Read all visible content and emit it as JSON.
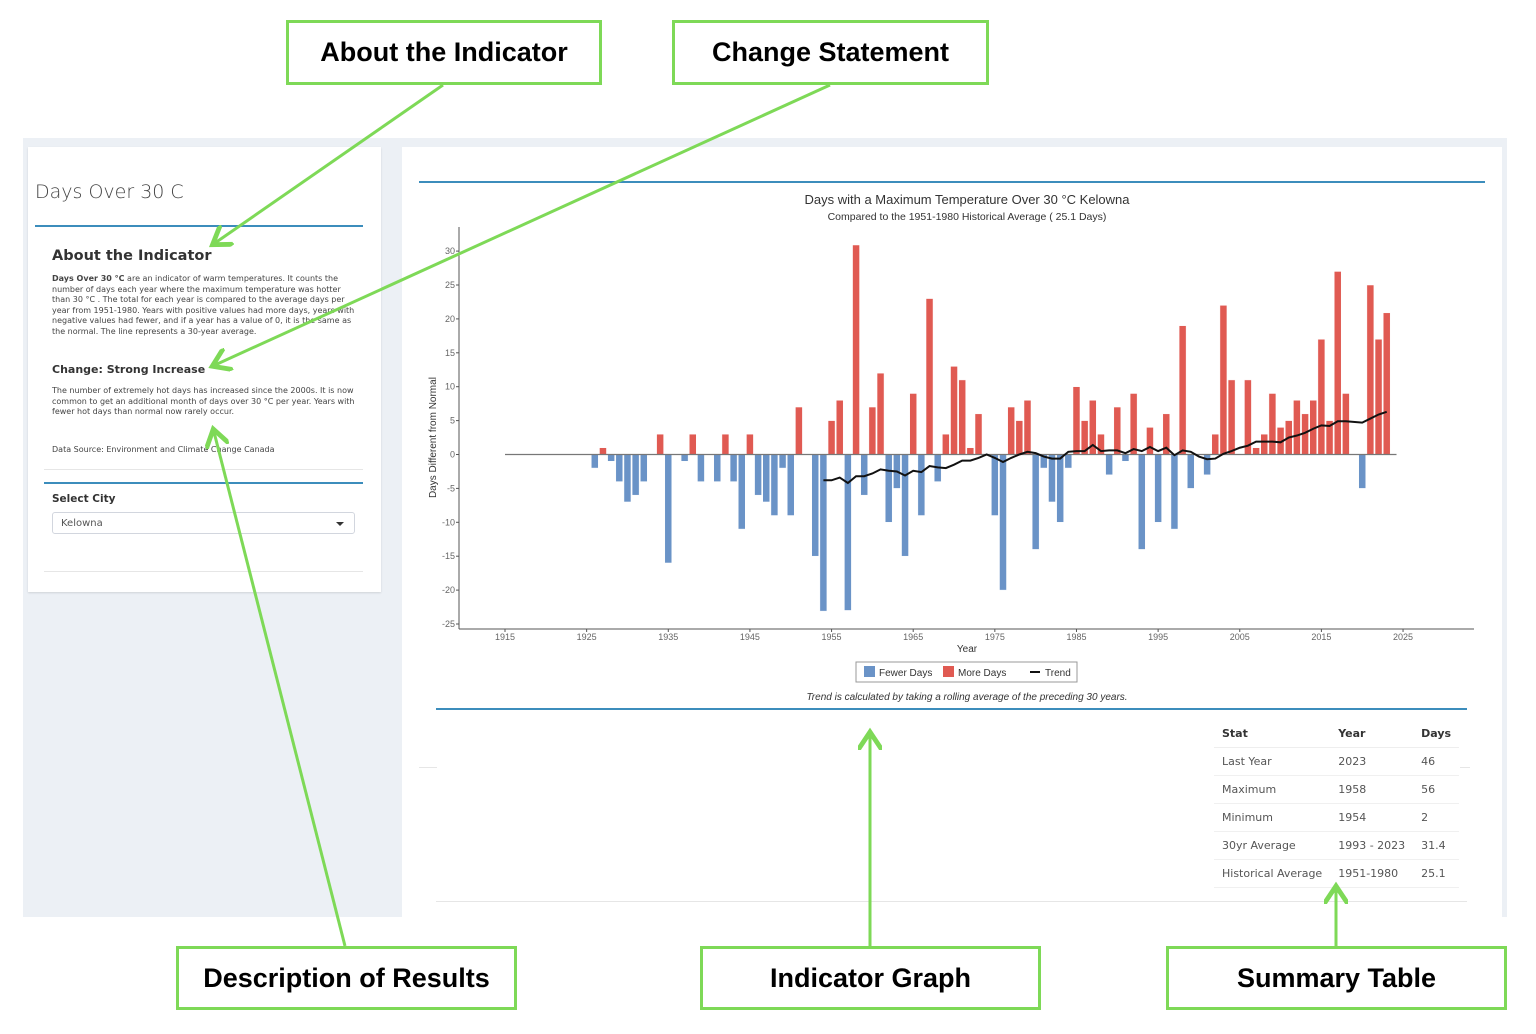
{
  "sidebar": {
    "app_title": "Days Over 30 C",
    "about_heading": "About the Indicator",
    "about_bold": "Days Over 30 °C",
    "about_text": " are an indicator of warm temperatures. It counts the number of days each year where the maximum temperature was hotter than 30 °C . The total for each year is compared to the average days per year from 1951-1980. Years with positive values had more days, years with negative values had fewer, and if a year has a value of 0, it is the same as the normal. The line represents a 30-year average.",
    "change_heading": "Change: Strong Increase",
    "change_text": "The number of extremely hot days has increased since the 2000s. It is now common to get an additional month of days over 30 °C per year. Years with fewer hot days than normal now rarely occur.",
    "data_source": "Data Source: Environment and Climate Change Canada",
    "select_label": "Select City",
    "select_value": "Kelowna"
  },
  "trend_note": "Trend is calculated by taking a rolling average of the preceding 30 years.",
  "summary_table": {
    "headers": [
      "Stat",
      "Year",
      "Days"
    ],
    "rows": [
      [
        "Last Year",
        "2023",
        "46"
      ],
      [
        "Maximum",
        "1958",
        "56"
      ],
      [
        "Minimum",
        "1954",
        "2"
      ],
      [
        "30yr Average",
        "1993 - 2023",
        "31.4"
      ],
      [
        "Historical Average",
        "1951-1980",
        "25.1"
      ]
    ]
  },
  "annotations": {
    "about": "About the Indicator",
    "change": "Change Statement",
    "description": "Description of Results",
    "graph": "Indicator Graph",
    "table": "Summary Table"
  },
  "colors": {
    "fewer": "#6a93c7",
    "more": "#e05a52",
    "trend": "#111111",
    "accent": "#3c8dbc",
    "annotation": "#7ed957"
  },
  "chart_data": {
    "type": "bar",
    "title": "Days with a Maximum Temperature Over 30 °C Kelowna",
    "subtitle": "Compared to the 1951-1980 Historical Average ( 25.1 Days)",
    "xlabel": "Year",
    "ylabel": "Days Different from Normal",
    "xlim": [
      1913,
      2033
    ],
    "ylim": [
      -26,
      33
    ],
    "xticks": [
      1915,
      1925,
      1935,
      1945,
      1955,
      1965,
      1975,
      1985,
      1995,
      2005,
      2015,
      2025
    ],
    "yticks": [
      30,
      25,
      20,
      15,
      10,
      5,
      0,
      -5,
      -10,
      -15,
      -20,
      -25
    ],
    "legend": [
      "Fewer Days",
      "More Days",
      "Trend"
    ],
    "legend_position": "bottom",
    "grid": false,
    "bars": {
      "years": [
        1926,
        1927,
        1928,
        1929,
        1930,
        1931,
        1932,
        1934,
        1935,
        1937,
        1938,
        1939,
        1941,
        1942,
        1943,
        1944,
        1945,
        1946,
        1947,
        1948,
        1949,
        1950,
        1951,
        1953,
        1954,
        1955,
        1956,
        1957,
        1958,
        1959,
        1960,
        1961,
        1962,
        1963,
        1964,
        1965,
        1966,
        1967,
        1968,
        1969,
        1970,
        1971,
        1972,
        1973,
        1975,
        1976,
        1977,
        1978,
        1979,
        1980,
        1981,
        1982,
        1983,
        1984,
        1985,
        1986,
        1987,
        1988,
        1989,
        1990,
        1991,
        1992,
        1993,
        1994,
        1995,
        1996,
        1997,
        1998,
        1999,
        2001,
        2002,
        2003,
        2004,
        2006,
        2007,
        2008,
        2009,
        2010,
        2011,
        2012,
        2013,
        2014,
        2015,
        2016,
        2017,
        2018,
        2020,
        2021,
        2022,
        2023
      ],
      "values": [
        -2,
        1,
        -1,
        -4,
        -7,
        -6,
        -4,
        3,
        -16,
        -1,
        3,
        -4,
        -4,
        3,
        -4,
        -11,
        3,
        -6,
        -7,
        -9,
        -2,
        -9,
        7,
        -15,
        -23.1,
        5,
        8,
        -23,
        30.9,
        -6,
        7,
        12,
        -10,
        -5,
        -15,
        9,
        -9,
        23,
        -4,
        3,
        13,
        11,
        1,
        6,
        -9,
        -20,
        7,
        5,
        8,
        -14,
        -2,
        -7,
        -10,
        -2,
        10,
        5,
        8,
        3,
        -3,
        7,
        -1,
        9,
        -14,
        4,
        -10,
        6,
        -11,
        19,
        -5,
        -3,
        3,
        22,
        11,
        11,
        1,
        3,
        9,
        4,
        5,
        8,
        6,
        8,
        17,
        5,
        27,
        9,
        -5,
        25,
        17,
        20.9
      ]
    },
    "trend": {
      "years": [
        1954,
        1955,
        1956,
        1957,
        1958,
        1959,
        1960,
        1961,
        1962,
        1963,
        1964,
        1965,
        1966,
        1967,
        1968,
        1969,
        1970,
        1971,
        1972,
        1973,
        1974,
        1975,
        1976,
        1977,
        1978,
        1979,
        1980,
        1981,
        1982,
        1983,
        1984,
        1985,
        1986,
        1987,
        1988,
        1989,
        1990,
        1991,
        1992,
        1993,
        1994,
        1995,
        1996,
        1997,
        1998,
        1999,
        2000,
        2001,
        2002,
        2003,
        2004,
        2005,
        2006,
        2007,
        2008,
        2009,
        2010,
        2011,
        2012,
        2013,
        2014,
        2015,
        2016,
        2017,
        2018,
        2020,
        2021,
        2022,
        2023
      ],
      "values": [
        -3.8,
        -3.8,
        -3.4,
        -4.2,
        -3.2,
        -3.2,
        -2.8,
        -2.2,
        -2.4,
        -2.5,
        -3.1,
        -2.4,
        -2.6,
        -1.7,
        -1.9,
        -2.0,
        -1.5,
        -0.9,
        -0.9,
        -0.5,
        0.0,
        -0.5,
        -1.1,
        -0.5,
        0.0,
        0.4,
        0.2,
        -0.3,
        -0.6,
        -0.6,
        0.4,
        0.5,
        0.5,
        1.4,
        0.5,
        0.6,
        0.6,
        0.2,
        0.8,
        0.5,
        1.1,
        0.5,
        1.0,
        -0.1,
        0.6,
        0.4,
        -0.3,
        -0.7,
        -0.6,
        0.1,
        0.5,
        1.0,
        1.3,
        1.9,
        1.9,
        1.9,
        1.8,
        2.5,
        2.8,
        3.2,
        3.8,
        4.3,
        4.2,
        4.9,
        4.9,
        4.7,
        5.3,
        5.9,
        6.3
      ]
    }
  }
}
